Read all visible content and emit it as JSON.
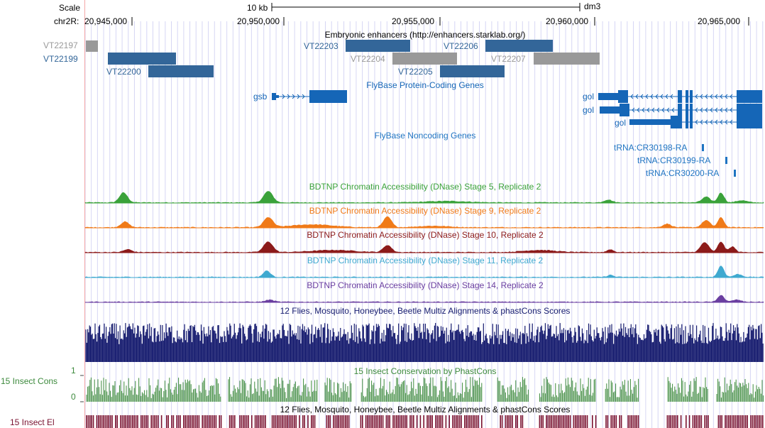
{
  "ruler": {
    "scale_label": "Scale",
    "scale_bar_label": "10 kb",
    "assembly": "dm3",
    "chrom_prefix": "chr2R:",
    "ticks": [
      "20,945,000",
      "20,950,000",
      "20,955,000",
      "20,960,000",
      "20,965,000"
    ]
  },
  "tracks": {
    "enhancers": {
      "title": "Embryonic enhancers (http://enhancers.starklab.org/)",
      "items": [
        {
          "name": "VT22197",
          "color": "#999999"
        },
        {
          "name": "VT22199",
          "color": "#336699"
        },
        {
          "name": "VT22200",
          "color": "#336699"
        },
        {
          "name": "VT22203",
          "color": "#336699"
        },
        {
          "name": "VT22204",
          "color": "#999999"
        },
        {
          "name": "VT22205",
          "color": "#336699"
        },
        {
          "name": "VT22206",
          "color": "#336699"
        },
        {
          "name": "VT22207",
          "color": "#999999"
        }
      ]
    },
    "protein_genes": {
      "title": "FlyBase Protein-Coding Genes",
      "color": "#1566b7",
      "genes": [
        "gsb",
        "gol",
        "gol",
        "gol"
      ]
    },
    "noncoding_genes": {
      "title": "FlyBase Noncoding Genes",
      "color": "#1f74c2",
      "genes": [
        "tRNA:CR30198-RA",
        "tRNA:CR30199-RA",
        "tRNA:CR30200-RA"
      ]
    },
    "dnase": [
      {
        "title": "BDTNP Chromatin Accessibility (DNase) Stage 5, Replicate 2",
        "color": "#3aa23a"
      },
      {
        "title": "BDTNP Chromatin Accessibility (DNase) Stage 9, Replicate 2",
        "color": "#f07a18"
      },
      {
        "title": "BDTNP Chromatin Accessibility (DNase) Stage 10, Replicate 2",
        "color": "#8c1a1a"
      },
      {
        "title": "BDTNP Chromatin Accessibility (DNase) Stage 11, Replicate 2",
        "color": "#3fa9d0"
      },
      {
        "title": "BDTNP Chromatin Accessibility (DNase) Stage 14, Replicate 2",
        "color": "#6a3ea0"
      }
    ],
    "multiz": {
      "title": "12 Flies, Mosquito, Honeybee, Beetle Multiz Alignments & phastCons Scores",
      "color": "#141a6e"
    },
    "phastcons": {
      "title": "15 Insect Conservation by PhastCons",
      "side_label": "15 Insect Cons",
      "axis_max": "1",
      "axis_min": "0",
      "color": "#3d8a3d"
    },
    "elements": {
      "title": "12 Flies, Mosquito, Honeybee, Beetle Multiz Alignments & phastCons Scores",
      "side_label": "15 Insect El",
      "color": "#7a1230"
    }
  }
}
